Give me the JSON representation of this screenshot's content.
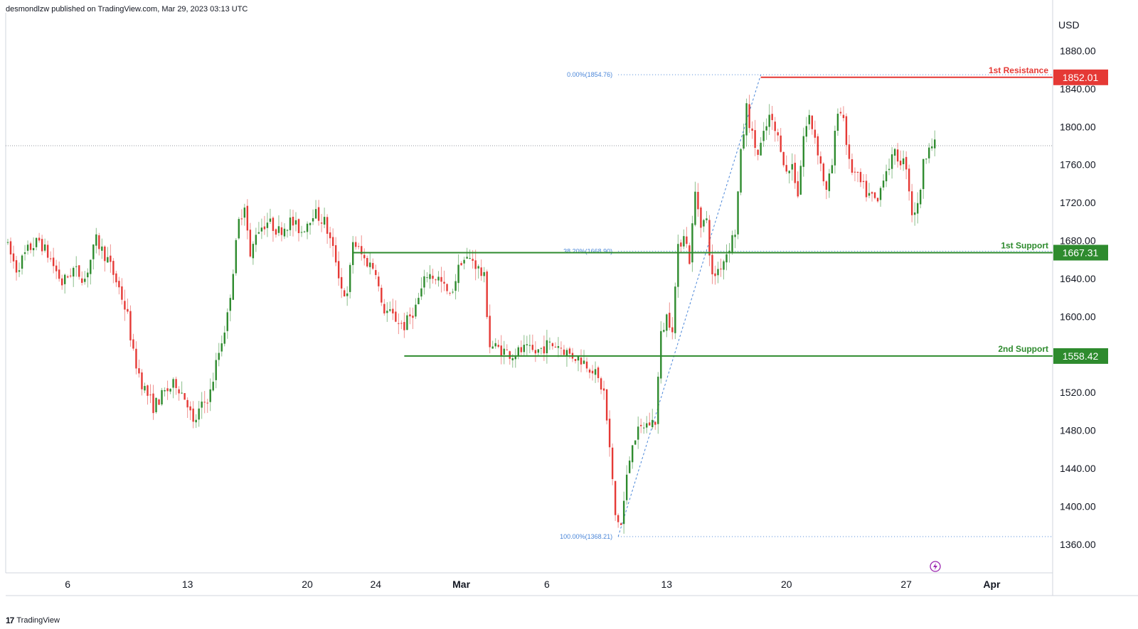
{
  "header": {
    "publisher_text": "desmondlzw published on TradingView.com, Mar 29, 2023 03:13 UTC"
  },
  "footer": {
    "logo_mark": "17",
    "logo_text": "TradingView"
  },
  "colors": {
    "up": "#2e8b2e",
    "down": "#e53935",
    "support": "#2e8b2e",
    "resistance": "#e53935",
    "fib": "#4a86d8",
    "grid_border": "#d1d4dc",
    "replay_icon": "#9c27b0"
  },
  "chart_data": {
    "type": "candlestick",
    "currency_label": "USD",
    "ylim": [
      1330,
      1920
    ],
    "y_ticks": [
      {
        "value": 1880,
        "label": "1880.00"
      },
      {
        "value": 1840,
        "label": "1840.00"
      },
      {
        "value": 1800,
        "label": "1800.00"
      },
      {
        "value": 1760,
        "label": "1760.00"
      },
      {
        "value": 1720,
        "label": "1720.00"
      },
      {
        "value": 1680,
        "label": "1680.00"
      },
      {
        "value": 1640,
        "label": "1640.00"
      },
      {
        "value": 1600,
        "label": "1600.00"
      },
      {
        "value": 1520,
        "label": "1520.00"
      },
      {
        "value": 1480,
        "label": "1480.00"
      },
      {
        "value": 1440,
        "label": "1440.00"
      },
      {
        "value": 1400,
        "label": "1400.00"
      },
      {
        "value": 1360,
        "label": "1360.00"
      }
    ],
    "x_ticks": [
      {
        "label": "6",
        "bar": 21,
        "bold": false
      },
      {
        "label": "13",
        "bar": 63,
        "bold": false
      },
      {
        "label": "20",
        "bar": 105,
        "bold": false
      },
      {
        "label": "24",
        "bar": 129,
        "bold": false
      },
      {
        "label": "Mar",
        "bar": 159,
        "bold": true
      },
      {
        "label": "6",
        "bar": 189,
        "bold": false
      },
      {
        "label": "13",
        "bar": 231,
        "bold": false
      },
      {
        "label": "20",
        "bar": 273,
        "bold": false
      },
      {
        "label": "27",
        "bar": 315,
        "bold": false
      },
      {
        "label": "Apr",
        "bar": 345,
        "bold": true
      }
    ],
    "last_price": 1780,
    "levels": [
      {
        "label": "1st Resistance",
        "price": 1852.01,
        "price_label": "1852.01",
        "kind": "resistance",
        "start_bar": 264
      },
      {
        "label": "1st Support",
        "price": 1667.31,
        "price_label": "1667.31",
        "kind": "support",
        "start_bar": 121
      },
      {
        "label": "2nd Support",
        "price": 1558.42,
        "price_label": "1558.42",
        "kind": "support",
        "start_bar": 139
      }
    ],
    "fibonacci": {
      "start_bar": 214,
      "end_bar": 264,
      "low": 1368.21,
      "high": 1854.76,
      "levels": [
        {
          "label": "0.00%(1854.76)",
          "price": 1854.76
        },
        {
          "label": "38.20%(1668.90)",
          "price": 1668.9
        },
        {
          "label": "100.00%(1368.21)",
          "price": 1368.21
        }
      ]
    },
    "bar_count": 330,
    "anchors": [
      [
        0,
        1680
      ],
      [
        4,
        1650
      ],
      [
        8,
        1670
      ],
      [
        12,
        1680
      ],
      [
        16,
        1660
      ],
      [
        20,
        1635
      ],
      [
        24,
        1650
      ],
      [
        28,
        1640
      ],
      [
        32,
        1680
      ],
      [
        36,
        1660
      ],
      [
        40,
        1630
      ],
      [
        43,
        1600
      ],
      [
        45,
        1560
      ],
      [
        48,
        1530
      ],
      [
        52,
        1505
      ],
      [
        56,
        1520
      ],
      [
        60,
        1530
      ],
      [
        64,
        1510
      ],
      [
        66,
        1485
      ],
      [
        68,
        1500
      ],
      [
        72,
        1520
      ],
      [
        74,
        1550
      ],
      [
        78,
        1600
      ],
      [
        80,
        1650
      ],
      [
        82,
        1700
      ],
      [
        84,
        1720
      ],
      [
        86,
        1660
      ],
      [
        88,
        1690
      ],
      [
        92,
        1700
      ],
      [
        96,
        1690
      ],
      [
        100,
        1700
      ],
      [
        104,
        1690
      ],
      [
        108,
        1710
      ],
      [
        112,
        1700
      ],
      [
        114,
        1680
      ],
      [
        116,
        1660
      ],
      [
        118,
        1630
      ],
      [
        120,
        1620
      ],
      [
        122,
        1680
      ],
      [
        126,
        1660
      ],
      [
        130,
        1650
      ],
      [
        132,
        1610
      ],
      [
        136,
        1600
      ],
      [
        140,
        1590
      ],
      [
        144,
        1610
      ],
      [
        148,
        1645
      ],
      [
        152,
        1640
      ],
      [
        156,
        1620
      ],
      [
        160,
        1660
      ],
      [
        164,
        1660
      ],
      [
        168,
        1640
      ],
      [
        170,
        1570
      ],
      [
        174,
        1565
      ],
      [
        178,
        1560
      ],
      [
        182,
        1565
      ],
      [
        186,
        1562
      ],
      [
        190,
        1570
      ],
      [
        194,
        1570
      ],
      [
        198,
        1560
      ],
      [
        202,
        1555
      ],
      [
        206,
        1545
      ],
      [
        210,
        1520
      ],
      [
        212,
        1460
      ],
      [
        214,
        1390
      ],
      [
        216,
        1380
      ],
      [
        218,
        1430
      ],
      [
        220,
        1470
      ],
      [
        224,
        1485
      ],
      [
        228,
        1490
      ],
      [
        230,
        1580
      ],
      [
        232,
        1600
      ],
      [
        234,
        1590
      ],
      [
        236,
        1670
      ],
      [
        238,
        1690
      ],
      [
        240,
        1660
      ],
      [
        242,
        1730
      ],
      [
        244,
        1700
      ],
      [
        246,
        1700
      ],
      [
        248,
        1640
      ],
      [
        252,
        1660
      ],
      [
        256,
        1690
      ],
      [
        258,
        1770
      ],
      [
        260,
        1820
      ],
      [
        262,
        1790
      ],
      [
        264,
        1770
      ],
      [
        266,
        1790
      ],
      [
        268,
        1810
      ],
      [
        272,
        1780
      ],
      [
        274,
        1750
      ],
      [
        276,
        1760
      ],
      [
        278,
        1730
      ],
      [
        280,
        1790
      ],
      [
        282,
        1810
      ],
      [
        284,
        1790
      ],
      [
        286,
        1760
      ],
      [
        288,
        1730
      ],
      [
        290,
        1760
      ],
      [
        292,
        1820
      ],
      [
        294,
        1810
      ],
      [
        296,
        1760
      ],
      [
        300,
        1740
      ],
      [
        302,
        1730
      ],
      [
        306,
        1720
      ],
      [
        308,
        1750
      ],
      [
        312,
        1770
      ],
      [
        316,
        1760
      ],
      [
        318,
        1710
      ],
      [
        320,
        1715
      ],
      [
        322,
        1760
      ],
      [
        324,
        1785
      ],
      [
        325,
        1780
      ]
    ],
    "visible_bars": 326
  }
}
